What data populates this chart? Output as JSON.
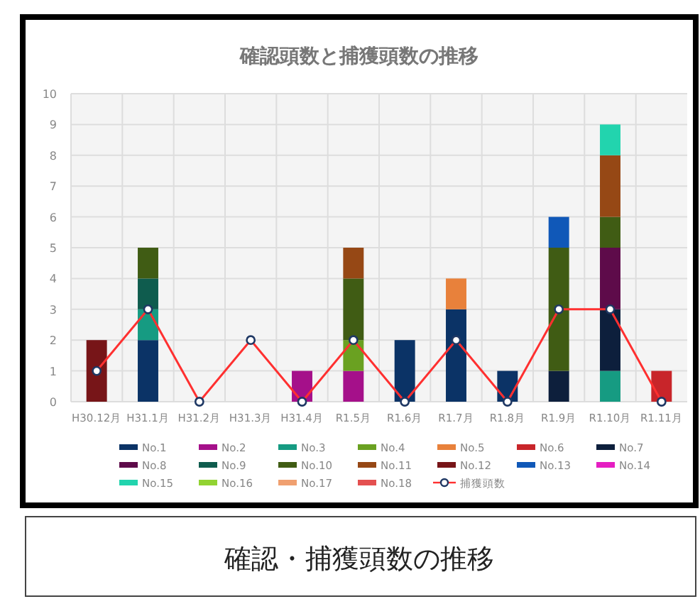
{
  "chart_data": {
    "type": "bar",
    "stacked": true,
    "title": "確認頭数と捕獲頭数の推移",
    "categories": [
      "H30.12月",
      "H31.1月",
      "H31.2月",
      "H31.3月",
      "H31.4月",
      "R1.5月",
      "R1.6月",
      "R1.7月",
      "R1.8月",
      "R1.9月",
      "R1.10月",
      "R1.11月"
    ],
    "series": [
      {
        "name": "No.1",
        "color": "#0b3366",
        "values": [
          null,
          2,
          null,
          null,
          null,
          null,
          2,
          3,
          1,
          null,
          null,
          null
        ]
      },
      {
        "name": "No.2",
        "color": "#a5108a",
        "values": [
          null,
          null,
          null,
          null,
          1,
          1,
          null,
          null,
          null,
          null,
          null,
          null
        ]
      },
      {
        "name": "No.3",
        "color": "#169b82",
        "values": [
          null,
          1,
          null,
          null,
          null,
          null,
          null,
          null,
          null,
          null,
          1,
          null
        ]
      },
      {
        "name": "No.4",
        "color": "#6aa121",
        "values": [
          null,
          null,
          null,
          null,
          null,
          1,
          null,
          null,
          null,
          null,
          null,
          null
        ]
      },
      {
        "name": "No.5",
        "color": "#e8813b",
        "values": [
          null,
          null,
          null,
          null,
          null,
          null,
          null,
          1,
          null,
          null,
          null,
          null
        ]
      },
      {
        "name": "No.6",
        "color": "#c8252a",
        "values": [
          null,
          null,
          null,
          null,
          null,
          null,
          null,
          null,
          null,
          null,
          null,
          1
        ]
      },
      {
        "name": "No.7",
        "color": "#0d1f3c",
        "values": [
          null,
          null,
          null,
          null,
          null,
          null,
          null,
          null,
          null,
          1,
          2,
          null
        ]
      },
      {
        "name": "No.8",
        "color": "#5e0b4a",
        "values": [
          null,
          null,
          null,
          null,
          null,
          null,
          null,
          null,
          null,
          null,
          2,
          null
        ]
      },
      {
        "name": "No.9",
        "color": "#0f5c4e",
        "values": [
          null,
          1,
          null,
          null,
          null,
          null,
          null,
          null,
          null,
          null,
          null,
          null
        ]
      },
      {
        "name": "No.10",
        "color": "#405c14",
        "values": [
          null,
          1,
          null,
          null,
          null,
          2,
          null,
          null,
          null,
          4,
          1,
          null
        ]
      },
      {
        "name": "No.11",
        "color": "#964815",
        "values": [
          null,
          null,
          null,
          null,
          null,
          1,
          null,
          null,
          null,
          null,
          2,
          null
        ]
      },
      {
        "name": "No.12",
        "color": "#771518",
        "values": [
          2,
          null,
          null,
          null,
          null,
          null,
          null,
          null,
          null,
          null,
          null,
          null
        ]
      },
      {
        "name": "No.13",
        "color": "#1058b8",
        "values": [
          null,
          null,
          null,
          null,
          null,
          null,
          null,
          null,
          null,
          1,
          null,
          null
        ]
      },
      {
        "name": "No.14",
        "color": "#e51ec2",
        "values": [
          null,
          null,
          null,
          null,
          null,
          null,
          null,
          null,
          null,
          null,
          null,
          null
        ]
      },
      {
        "name": "No.15",
        "color": "#22d4ae",
        "values": [
          null,
          null,
          null,
          null,
          null,
          null,
          null,
          null,
          null,
          null,
          1,
          null
        ]
      },
      {
        "name": "No.16",
        "color": "#92d332",
        "values": [
          null,
          null,
          null,
          null,
          null,
          null,
          null,
          null,
          null,
          null,
          null,
          null
        ]
      },
      {
        "name": "No.17",
        "color": "#f0a070",
        "values": [
          null,
          null,
          null,
          null,
          null,
          null,
          null,
          null,
          null,
          null,
          null,
          null
        ]
      },
      {
        "name": "No.18",
        "color": "#e45050",
        "values": [
          null,
          null,
          null,
          null,
          null,
          null,
          null,
          null,
          null,
          null,
          null,
          null
        ]
      },
      {
        "name": "捕獲頭数",
        "type": "line",
        "color": "#ff3030",
        "marker": "circle",
        "values": [
          1,
          3,
          0,
          2,
          0,
          2,
          0,
          2,
          0,
          3,
          3,
          0
        ]
      }
    ],
    "ylim": [
      0,
      10
    ],
    "yticks": [
      0,
      1,
      2,
      3,
      4,
      5,
      6,
      7,
      8,
      9,
      10
    ],
    "grid": true,
    "legend": "bottom",
    "annotations": [
      "確認・捕獲頭数の推移"
    ]
  }
}
